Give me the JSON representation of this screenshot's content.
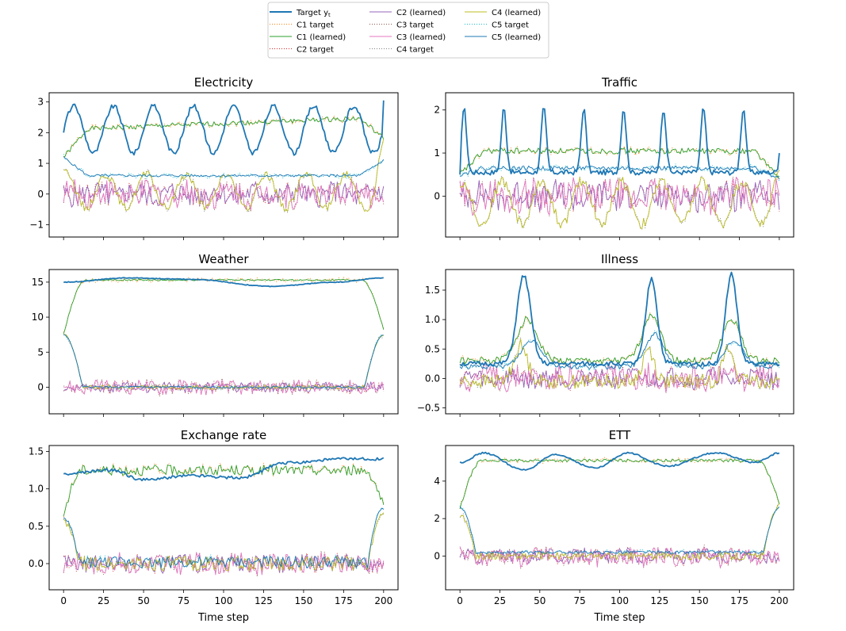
{
  "chart_data": [
    {
      "type": "line",
      "title": "Electricity",
      "xlabel": "",
      "ylabel": "",
      "xlim": [
        -9,
        209
      ],
      "ylim": [
        -1.4,
        3.3
      ],
      "xticks": [
        0,
        25,
        50,
        75,
        100,
        125,
        150,
        175,
        200
      ],
      "xtick_labels": [
        "",
        "",
        "",
        "",
        "",
        "",
        "",
        "",
        ""
      ],
      "yticks": [
        -1,
        0,
        1,
        2,
        3
      ],
      "ytick_labels": [
        "−1",
        "0",
        "1",
        "2",
        "3"
      ],
      "profiles": {
        "target": {
          "kind": "periodic",
          "base": 2.1,
          "amp": 0.85,
          "period": 25,
          "phase": 0,
          "noise": 0.08,
          "start": 2.0,
          "end": 3.05
        },
        "c1": {
          "kind": "plateau",
          "level": 2.1,
          "start": 1.2,
          "end": 1.8,
          "slope": 0.002,
          "noise": 0.08
        },
        "c2": {
          "kind": "noisy",
          "center": 0.0,
          "amp": 0.35,
          "seed": 3
        },
        "c3": {
          "kind": "noisy",
          "center": 0.0,
          "amp": 0.4,
          "seed": 7
        },
        "c4": {
          "kind": "periodicNoisy",
          "center": 0.1,
          "amp": 0.55,
          "period": 25,
          "seed": 11,
          "start": 0.8,
          "end": 1.8
        },
        "c5": {
          "kind": "plateau",
          "level": 0.6,
          "start": 1.2,
          "end": 1.1,
          "slope": 0.0,
          "noise": 0.04
        }
      }
    },
    {
      "type": "line",
      "title": "Traffic",
      "xlabel": "",
      "ylabel": "",
      "xlim": [
        -9,
        209
      ],
      "ylim": [
        -0.95,
        2.4
      ],
      "xticks": [
        0,
        25,
        50,
        75,
        100,
        125,
        150,
        175,
        200
      ],
      "xtick_labels": [
        "",
        "",
        "",
        "",
        "",
        "",
        "",
        "",
        ""
      ],
      "yticks": [
        0,
        1,
        2
      ],
      "ytick_labels": [
        "0",
        "1",
        "2"
      ],
      "profiles": {
        "target": {
          "kind": "spikes",
          "base": 0.55,
          "amp": 1.5,
          "period": 25,
          "phase": 10,
          "noise": 0.06,
          "start": 0.5,
          "end": 1.0
        },
        "c1": {
          "kind": "plateau",
          "level": 1.05,
          "start": 0.5,
          "end": 0.4,
          "slope": 0.0,
          "noise": 0.07
        },
        "c2": {
          "kind": "noisy",
          "center": 0.0,
          "amp": 0.3,
          "seed": 5
        },
        "c3": {
          "kind": "noisy",
          "center": 0.0,
          "amp": 0.35,
          "seed": 9
        },
        "c4": {
          "kind": "periodicNoisy",
          "center": -0.15,
          "amp": 0.5,
          "period": 25,
          "seed": 13,
          "start": 0.2,
          "end": 0.6
        },
        "c5": {
          "kind": "plateau",
          "level": 0.65,
          "start": 0.5,
          "end": 0.4,
          "slope": 0.0,
          "noise": 0.05
        }
      }
    },
    {
      "type": "line",
      "title": "Weather",
      "xlabel": "",
      "ylabel": "",
      "xlim": [
        -9,
        209
      ],
      "ylim": [
        -3.8,
        16.8
      ],
      "xticks": [
        0,
        25,
        50,
        75,
        100,
        125,
        150,
        175,
        200
      ],
      "xtick_labels": [
        "",
        "",
        "",
        "",
        "",
        "",
        "",
        "",
        ""
      ],
      "yticks": [
        0,
        5,
        10,
        15
      ],
      "ytick_labels": [
        "0",
        "5",
        "10",
        "15"
      ],
      "profiles": {
        "target": {
          "kind": "smooth",
          "points": [
            [
              0,
              15.0
            ],
            [
              40,
              15.6
            ],
            [
              80,
              15.4
            ],
            [
              130,
              14.4
            ],
            [
              170,
              15.0
            ],
            [
              200,
              15.6
            ]
          ],
          "noise": 0.05
        },
        "c1": {
          "kind": "edgeRamp",
          "level": 15.3,
          "start": 7.5,
          "end": 8.2,
          "ramp": 14,
          "noise": 0.1
        },
        "c2": {
          "kind": "noisy",
          "center": 0.0,
          "amp": 0.6,
          "seed": 4
        },
        "c3": {
          "kind": "noisy",
          "center": 0.0,
          "amp": 0.9,
          "seed": 8
        },
        "c4": {
          "kind": "edgeDecay",
          "level": 0.0,
          "start": 7.5,
          "end": 7.5,
          "ramp": 12,
          "noise": 0.3
        },
        "c5": {
          "kind": "edgeDecay",
          "level": 0.0,
          "start": 7.5,
          "end": 7.5,
          "ramp": 12,
          "noise": 0.15
        }
      }
    },
    {
      "type": "line",
      "title": "Illness",
      "xlabel": "",
      "ylabel": "",
      "xlim": [
        -9,
        209
      ],
      "ylim": [
        -0.6,
        1.85
      ],
      "xticks": [
        0,
        25,
        50,
        75,
        100,
        125,
        150,
        175,
        200
      ],
      "xtick_labels": [
        "",
        "",
        "",
        "",
        "",
        "",
        "",
        "",
        ""
      ],
      "yticks": [
        -0.5,
        0.0,
        0.5,
        1.0,
        1.5
      ],
      "ytick_labels": [
        "−0.5",
        "0.0",
        "0.5",
        "1.0",
        "1.5"
      ],
      "profiles": {
        "target": {
          "kind": "peaks",
          "base": 0.25,
          "peaks": [
            [
              40,
              1.75,
              6
            ],
            [
              120,
              1.7,
              5
            ],
            [
              170,
              1.78,
              5
            ]
          ],
          "noise": 0.04
        },
        "c1": {
          "kind": "peaks",
          "base": 0.3,
          "peaks": [
            [
              42,
              1.0,
              9
            ],
            [
              120,
              1.1,
              8
            ],
            [
              170,
              1.0,
              8
            ]
          ],
          "noise": 0.06
        },
        "c2": {
          "kind": "noisy",
          "center": 0.0,
          "amp": 0.15,
          "seed": 6
        },
        "c3": {
          "kind": "noisy",
          "center": 0.02,
          "amp": 0.2,
          "seed": 10
        },
        "c4": {
          "kind": "peaksNoisy",
          "base": -0.05,
          "peaks": [
            [
              38,
              0.55,
              6
            ],
            [
              118,
              0.5,
              5
            ],
            [
              168,
              0.5,
              5
            ]
          ],
          "noise": 0.12
        },
        "c5": {
          "kind": "peaks",
          "base": 0.2,
          "peaks": [
            [
              45,
              0.65,
              9
            ],
            [
              122,
              0.75,
              8
            ],
            [
              172,
              0.65,
              8
            ]
          ],
          "noise": 0.04
        }
      }
    },
    {
      "type": "line",
      "title": "Exchange rate",
      "xlabel": "Time step",
      "ylabel": "",
      "xlim": [
        -9,
        209
      ],
      "ylim": [
        -0.35,
        1.58
      ],
      "xticks": [
        0,
        25,
        50,
        75,
        100,
        125,
        150,
        175,
        200
      ],
      "xtick_labels": [
        "0",
        "25",
        "50",
        "75",
        "100",
        "125",
        "150",
        "175",
        "200"
      ],
      "yticks": [
        0.0,
        0.5,
        1.0,
        1.5
      ],
      "ytick_labels": [
        "0.0",
        "0.5",
        "1.0",
        "1.5"
      ],
      "profiles": {
        "target": {
          "kind": "smooth",
          "points": [
            [
              0,
              1.2
            ],
            [
              30,
              1.25
            ],
            [
              50,
              1.12
            ],
            [
              80,
              1.18
            ],
            [
              110,
              1.15
            ],
            [
              140,
              1.35
            ],
            [
              175,
              1.4
            ],
            [
              200,
              1.4
            ]
          ],
          "noise": 0.02
        },
        "c1": {
          "kind": "edgeRamp",
          "level": 1.25,
          "start": 0.65,
          "end": 0.75,
          "ramp": 12,
          "noise": 0.07
        },
        "c2": {
          "kind": "noisy",
          "center": 0.0,
          "amp": 0.1,
          "seed": 2
        },
        "c3": {
          "kind": "noisy",
          "center": 0.0,
          "amp": 0.12,
          "seed": 12
        },
        "c4": {
          "kind": "edgeDecay",
          "level": 0.0,
          "start": 0.55,
          "end": 0.7,
          "ramp": 10,
          "noise": 0.1
        },
        "c5": {
          "kind": "edgeDecay",
          "level": 0.02,
          "start": 0.6,
          "end": 0.75,
          "ramp": 10,
          "noise": 0.08
        }
      }
    },
    {
      "type": "line",
      "title": "ETT",
      "xlabel": "Time step",
      "ylabel": "",
      "xlim": [
        -9,
        209
      ],
      "ylim": [
        -1.8,
        5.9
      ],
      "xticks": [
        0,
        25,
        50,
        75,
        100,
        125,
        150,
        175,
        200
      ],
      "xtick_labels": [
        "0",
        "25",
        "50",
        "75",
        "100",
        "125",
        "150",
        "175",
        "200"
      ],
      "yticks": [
        0,
        2,
        4
      ],
      "ytick_labels": [
        "0",
        "2",
        "4"
      ],
      "profiles": {
        "target": {
          "kind": "smooth",
          "points": [
            [
              0,
              5.0
            ],
            [
              15,
              5.5
            ],
            [
              40,
              4.6
            ],
            [
              60,
              5.4
            ],
            [
              85,
              4.7
            ],
            [
              105,
              5.5
            ],
            [
              130,
              4.8
            ],
            [
              160,
              5.5
            ],
            [
              185,
              5.0
            ],
            [
              200,
              5.5
            ]
          ],
          "noise": 0.04
        },
        "c1": {
          "kind": "edgeRamp",
          "level": 5.1,
          "start": 2.5,
          "end": 2.8,
          "ramp": 14,
          "noise": 0.08
        },
        "c2": {
          "kind": "noisy",
          "center": 0.0,
          "amp": 0.35,
          "seed": 1
        },
        "c3": {
          "kind": "noisy",
          "center": -0.05,
          "amp": 0.45,
          "seed": 14
        },
        "c4": {
          "kind": "edgeDecay",
          "level": 0.0,
          "start": 2.2,
          "end": 2.7,
          "ramp": 10,
          "noise": 0.2
        },
        "c5": {
          "kind": "edgeDecay",
          "level": 0.2,
          "start": 2.6,
          "end": 2.6,
          "ramp": 10,
          "noise": 0.08
        }
      }
    }
  ],
  "legend": {
    "placement": "top-center",
    "entries": [
      {
        "key": "target",
        "label": "Target y",
        "sub": "t",
        "color": "#1f77b4",
        "dash": "",
        "width": 2
      },
      {
        "key": "c1t",
        "label": "C1 target",
        "color": "#ff7f0e",
        "dash": "1,2",
        "width": 1
      },
      {
        "key": "c1",
        "label": "C1 (learned)",
        "color": "#2ca02c",
        "dash": "",
        "width": 1
      },
      {
        "key": "c2t",
        "label": "C2 target",
        "color": "#d62728",
        "dash": "1,2",
        "width": 1
      },
      {
        "key": "c2",
        "label": "C2 (learned)",
        "color": "#9467bd",
        "dash": "",
        "width": 1
      },
      {
        "key": "c3t",
        "label": "C3 target",
        "color": "#8c564b",
        "dash": "1,2",
        "width": 1
      },
      {
        "key": "c3",
        "label": "C3 (learned)",
        "color": "#e377c2",
        "dash": "",
        "width": 1
      },
      {
        "key": "c4t",
        "label": "C4 target",
        "color": "#7f7f7f",
        "dash": "1,2",
        "width": 1
      },
      {
        "key": "c4",
        "label": "C4 (learned)",
        "color": "#bcbd22",
        "dash": "",
        "width": 1
      },
      {
        "key": "c5t",
        "label": "C5 target",
        "color": "#17becf",
        "dash": "1,2",
        "width": 1
      },
      {
        "key": "c5",
        "label": "C5 (learned)",
        "color": "#1f77b4",
        "dash": "",
        "width": 1
      }
    ]
  }
}
